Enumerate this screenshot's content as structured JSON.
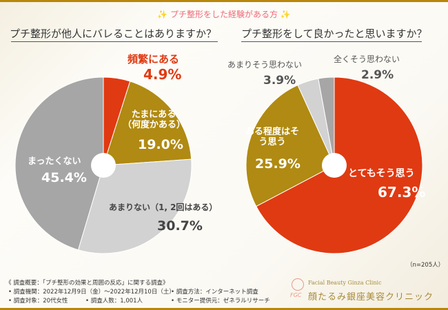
{
  "header": {
    "subtitle": "✨ プチ整形をした経験がある方 ✨"
  },
  "chart_data": [
    {
      "type": "pie",
      "title": "プチ整形が他人にバレることはありますか？",
      "categories": [
        "頻繁にある",
        "たまにある（何度かある）",
        "あまりない（1, 2回はある）",
        "まったくない"
      ],
      "values": [
        4.9,
        19.0,
        30.7,
        45.4
      ],
      "labels": [
        "4.9%",
        "19.0%",
        "30.7%",
        "45.4%"
      ],
      "colors": [
        "#e03a12",
        "#b08a12",
        "#d2d2d2",
        "#a6a6a6"
      ]
    },
    {
      "type": "pie",
      "title": "プチ整形をして良かったと思いますか？",
      "categories": [
        "とてもそう思う",
        "ある程度はそう思う",
        "あまりそう思わない",
        "全くそう思わない"
      ],
      "values": [
        67.3,
        25.9,
        3.9,
        2.9
      ],
      "labels": [
        "67.3%",
        "25.9%",
        "3.9%",
        "2.9%"
      ],
      "colors": [
        "#e03a12",
        "#b08a12",
        "#d2d2d2",
        "#a6a6a6"
      ]
    }
  ],
  "sample": "（n=205人）",
  "survey": {
    "title": "《 調査概要：「プチ整形の効果と周囲の反応」に関する調査》",
    "period": "• 調査機関：2022年12月9日（金）〜2022年12月10日（土）",
    "method": "• 調査方法：インターネット調査",
    "target": "• 調査対象：20代女性",
    "count": "• 調査人数：1,001人",
    "provider": "• モニター提供元：ゼネラルリサーチ"
  },
  "logo": {
    "en": "Facial Beauty Ginza Clinic",
    "jp": "顔たるみ銀座美容クリニック",
    "mark": "FGC"
  }
}
